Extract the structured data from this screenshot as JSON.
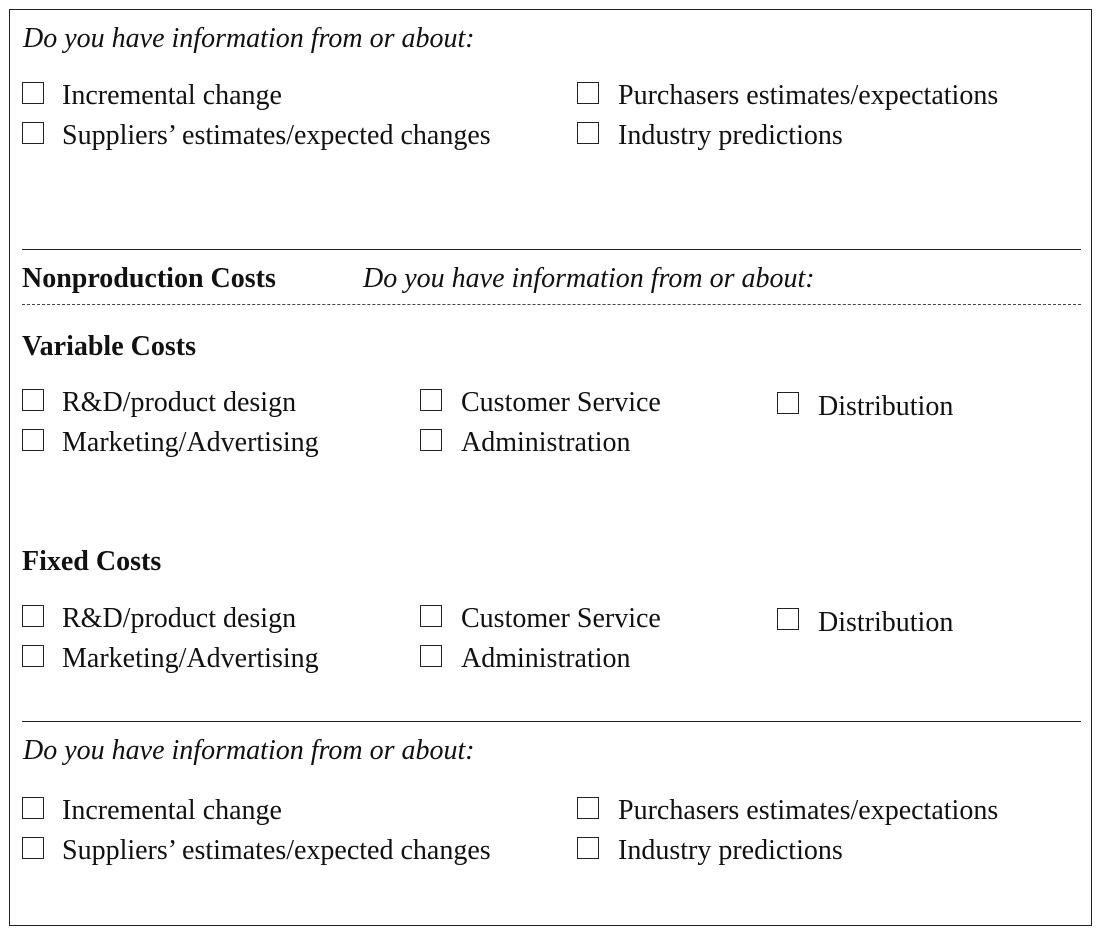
{
  "top": {
    "prompt": "Do you have information from or about:",
    "options": [
      "Incremental change",
      "Suppliers’ estimates/expected changes",
      "Purchasers estimates/expectations",
      "Industry predictions"
    ]
  },
  "nonproduction": {
    "heading": "Nonproduction Costs",
    "prompt": "Do you have information from or about:"
  },
  "variable": {
    "heading": "Variable Costs",
    "options": [
      "R&D/product design",
      "Marketing/Advertising",
      "Customer Service",
      "Administration",
      "Distribution"
    ]
  },
  "fixed": {
    "heading": "Fixed Costs",
    "options": [
      "R&D/product design",
      "Marketing/Advertising",
      "Customer Service",
      "Administration",
      "Distribution"
    ]
  },
  "bottom": {
    "prompt": "Do you have information from or about:",
    "options": [
      "Incremental change",
      "Suppliers’ estimates/expected changes",
      "Purchasers estimates/expectations",
      "Industry predictions"
    ]
  }
}
